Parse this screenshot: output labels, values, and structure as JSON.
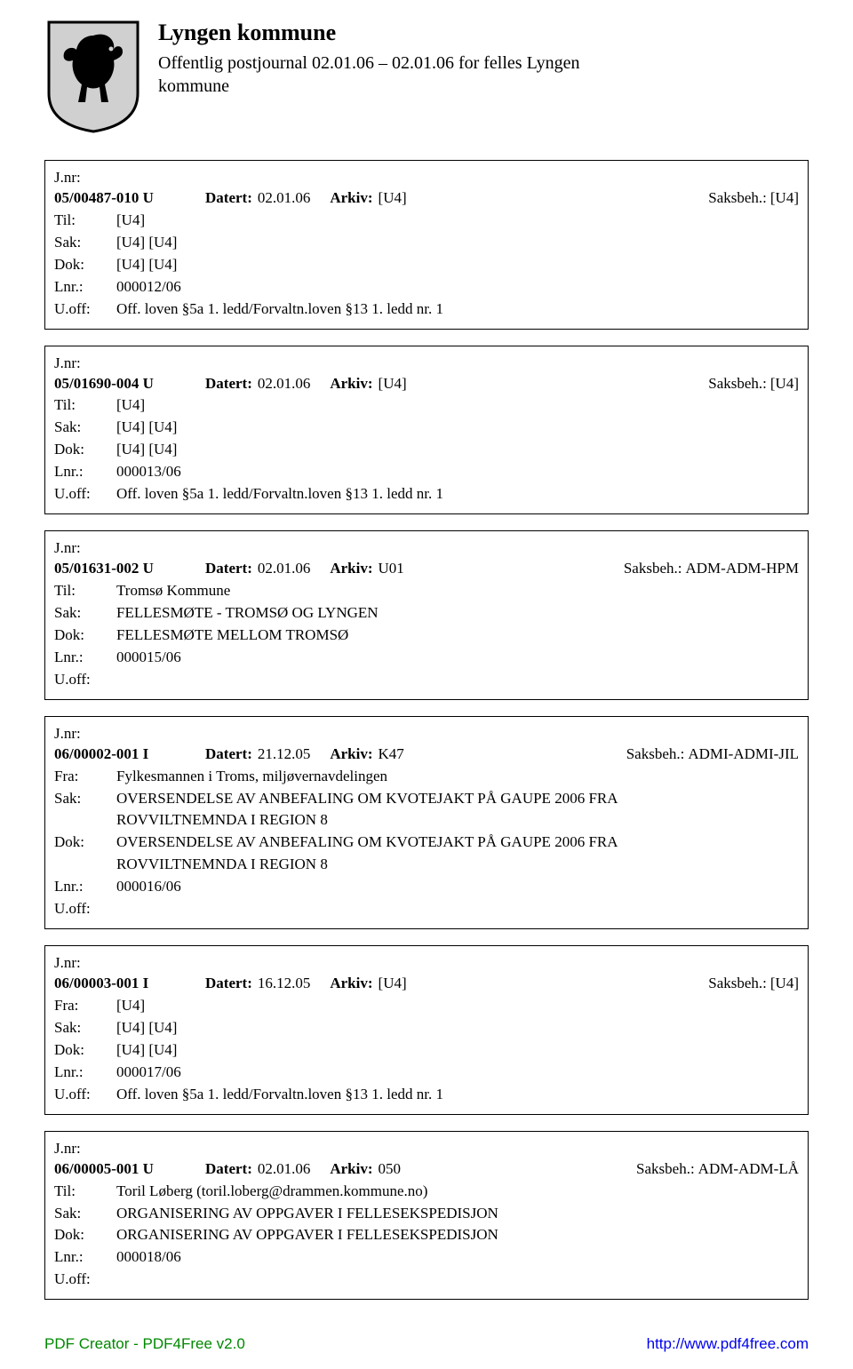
{
  "header": {
    "title": "Lyngen kommune",
    "subtitle": "Offentlig postjournal 02.01.06 – 02.01.06 for felles Lyngen kommune"
  },
  "labels": {
    "jnr": "J.nr:",
    "til": "Til:",
    "fra": "Fra:",
    "sak": "Sak:",
    "dok": "Dok:",
    "lnr": "Lnr.:",
    "uoff": "U.off:",
    "datert": "Datert:",
    "arkiv": "Arkiv:",
    "saksbeh": "Saksbeh.:"
  },
  "records": [
    {
      "jnr": "05/00487-010 U",
      "datert": "02.01.06",
      "arkiv": "[U4]",
      "saksbeh": "[U4]",
      "party_type": "til",
      "party": "[U4]",
      "sak_lines": [
        "[U4] [U4]"
      ],
      "dok_lines": [
        "[U4] [U4]"
      ],
      "lnr": "000012/06",
      "uoff": "Off. loven §5a 1. ledd/Forvaltn.loven §13 1. ledd nr. 1"
    },
    {
      "jnr": "05/01690-004 U",
      "datert": "02.01.06",
      "arkiv": "[U4]",
      "saksbeh": "[U4]",
      "party_type": "til",
      "party": "[U4]",
      "sak_lines": [
        "[U4] [U4]"
      ],
      "dok_lines": [
        "[U4] [U4]"
      ],
      "lnr": "000013/06",
      "uoff": "Off. loven §5a 1. ledd/Forvaltn.loven §13 1. ledd nr. 1"
    },
    {
      "jnr": "05/01631-002 U",
      "datert": "02.01.06",
      "arkiv": "U01",
      "saksbeh": "ADM-ADM-HPM",
      "party_type": "til",
      "party": "Tromsø Kommune",
      "sak_lines": [
        "FELLESMØTE - TROMSØ OG LYNGEN"
      ],
      "dok_lines": [
        "FELLESMØTE MELLOM TROMSØ"
      ],
      "lnr": "000015/06",
      "uoff": ""
    },
    {
      "jnr": "06/00002-001 I",
      "datert": "21.12.05",
      "arkiv": "K47",
      "saksbeh": "ADMI-ADMI-JIL",
      "party_type": "fra",
      "party": "Fylkesmannen i Troms, miljøvernavdelingen",
      "sak_lines": [
        "OVERSENDELSE AV ANBEFALING OM KVOTEJAKT PÅ GAUPE 2006  FRA",
        "ROVVILTNEMNDA I REGION 8"
      ],
      "dok_lines": [
        "OVERSENDELSE AV ANBEFALING OM KVOTEJAKT PÅ GAUPE 2006  FRA",
        "ROVVILTNEMNDA I REGION 8"
      ],
      "lnr": "000016/06",
      "uoff": ""
    },
    {
      "jnr": "06/00003-001 I",
      "datert": "16.12.05",
      "arkiv": "[U4]",
      "saksbeh": "[U4]",
      "party_type": "fra",
      "party": "[U4]",
      "sak_lines": [
        "[U4] [U4]"
      ],
      "dok_lines": [
        "[U4] [U4]"
      ],
      "lnr": "000017/06",
      "uoff": "Off. loven §5a 1. ledd/Forvaltn.loven §13 1. ledd nr. 1"
    },
    {
      "jnr": "06/00005-001 U",
      "datert": "02.01.06",
      "arkiv": "050",
      "saksbeh": "ADM-ADM-LÅ",
      "party_type": "til",
      "party": "Toril Løberg (toril.loberg@drammen.kommune.no)",
      "sak_lines": [
        "ORGANISERING AV OPPGAVER I FELLESEKSPEDISJON"
      ],
      "dok_lines": [
        "ORGANISERING AV OPPGAVER I FELLESEKSPEDISJON"
      ],
      "lnr": "000018/06",
      "uoff": ""
    }
  ],
  "footer": {
    "left": "PDF Creator - PDF4Free v2.0",
    "right": "http://www.pdf4free.com"
  }
}
